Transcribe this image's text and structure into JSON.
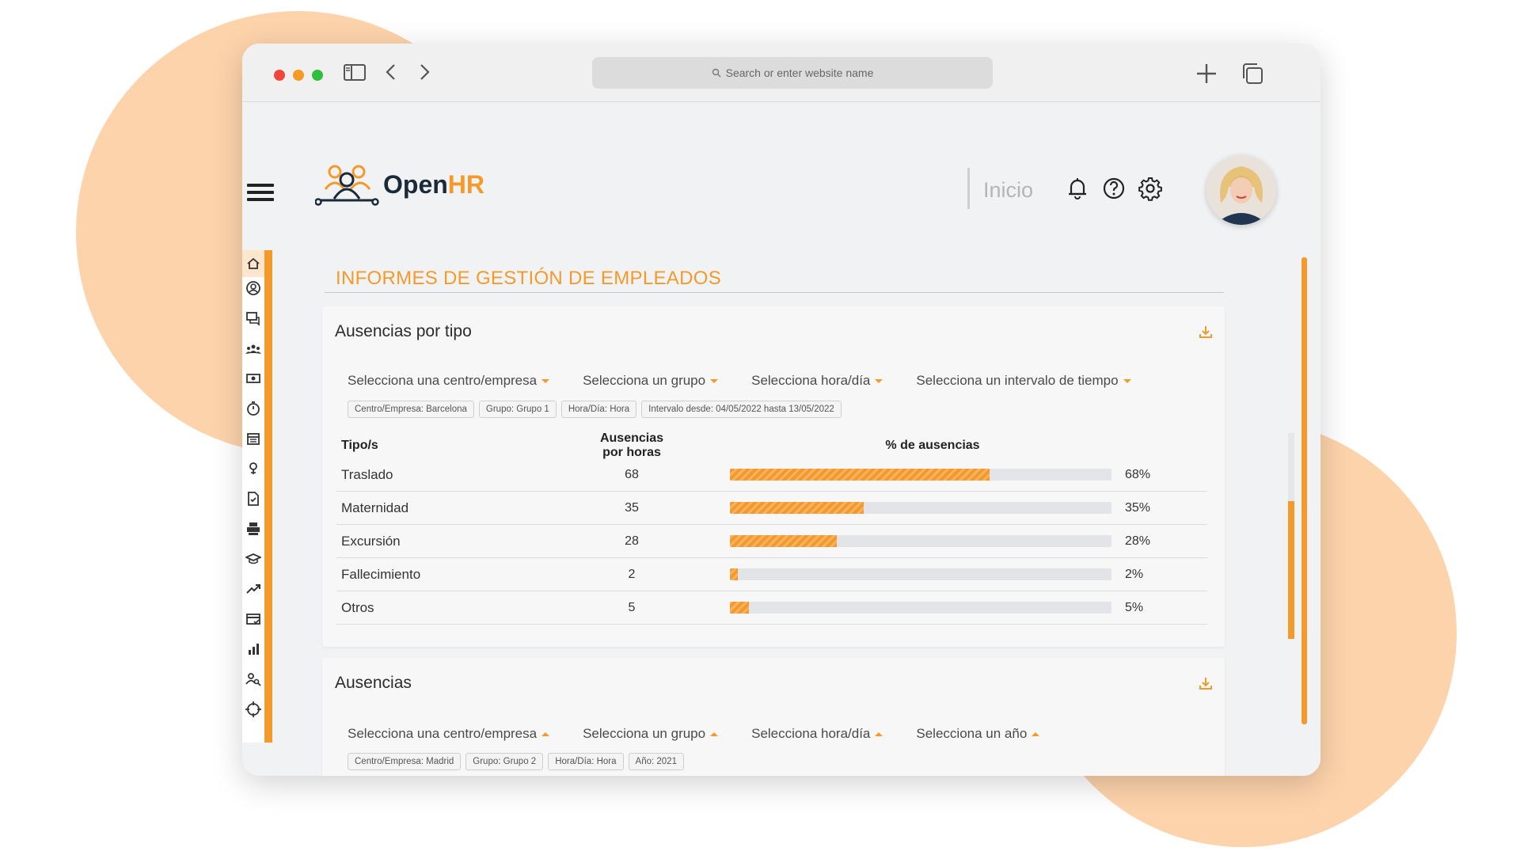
{
  "browser": {
    "url_placeholder": "Search or enter website name"
  },
  "header": {
    "logo_open": "Open",
    "logo_hr": "HR",
    "nav_label": "Inicio"
  },
  "page_title": "INFORMES DE GESTIÓN DE EMPLEADOS",
  "sidebar": {
    "items": [
      "home-icon",
      "user-circle-icon",
      "chat-icon",
      "team-icon",
      "payroll-icon",
      "timer-icon",
      "calendar-icon",
      "location-pin-icon",
      "document-check-icon",
      "printer-icon",
      "graduation-cap-icon",
      "trending-up-icon",
      "card-check-icon",
      "bar-chart-icon",
      "user-search-icon",
      "target-icon"
    ],
    "active": "home-icon"
  },
  "card1": {
    "title": "Ausencias por tipo",
    "filters": [
      {
        "label": "Selecciona una centro/empresa",
        "caret": "down"
      },
      {
        "label": "Selecciona un grupo",
        "caret": "down"
      },
      {
        "label": "Selecciona hora/día",
        "caret": "down"
      },
      {
        "label": "Selecciona un intervalo de tiempo",
        "caret": "down"
      }
    ],
    "chips": [
      "Centro/Empresa: Barcelona",
      "Grupo: Grupo 1",
      "Hora/Día: Hora",
      "Intervalo desde: 04/05/2022 hasta 13/05/2022"
    ],
    "table": {
      "headers": [
        "Tipo/s",
        "Ausencias por horas",
        "% de ausencias"
      ],
      "rows": [
        {
          "type": "Traslado",
          "hours": "68",
          "pct": 68,
          "pct_label": "68%"
        },
        {
          "type": "Maternidad",
          "hours": "35",
          "pct": 35,
          "pct_label": "35%"
        },
        {
          "type": "Excursión",
          "hours": "28",
          "pct": 28,
          "pct_label": "28%"
        },
        {
          "type": "Fallecimiento",
          "hours": "2",
          "pct": 2,
          "pct_label": "2%"
        },
        {
          "type": "Otros",
          "hours": "5",
          "pct": 5,
          "pct_label": "5%"
        }
      ]
    }
  },
  "card2": {
    "title": "Ausencias",
    "filters": [
      {
        "label": "Selecciona una centro/empresa",
        "caret": "up"
      },
      {
        "label": "Selecciona un grupo",
        "caret": "up"
      },
      {
        "label": "Selecciona hora/día",
        "caret": "up"
      },
      {
        "label": "Selecciona un año",
        "caret": "up"
      }
    ],
    "chips": [
      "Centro/Empresa: Madrid",
      "Grupo: Grupo 2",
      "Hora/Día: Hora",
      "Año: 2021"
    ]
  },
  "colors": {
    "accent": "#f39a2b",
    "blob": "#fdd3ab",
    "text_dark": "#1b2a3a"
  }
}
